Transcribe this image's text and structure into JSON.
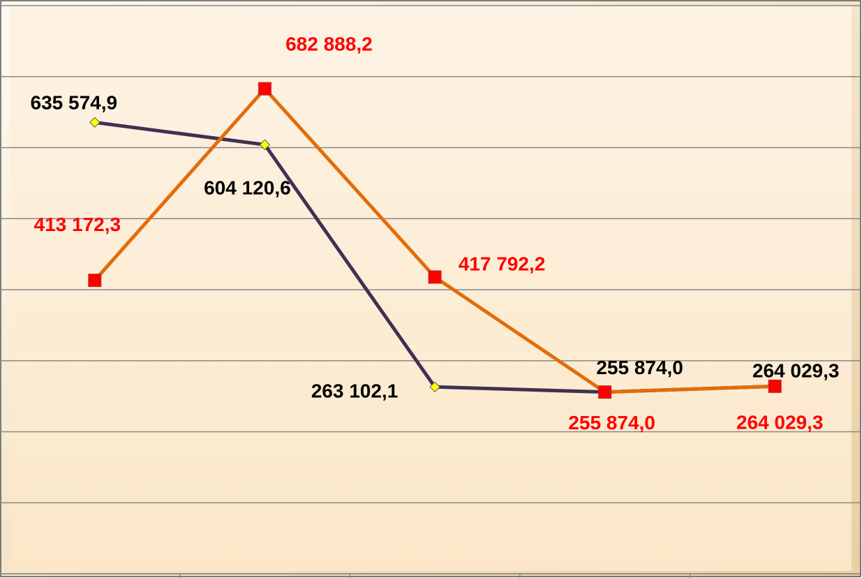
{
  "chart_data": {
    "type": "line",
    "categories": [
      null,
      null,
      null,
      null,
      null
    ],
    "series": [
      {
        "color": "#3f3151",
        "marker_color": "#ffff00",
        "label_color": "#000000",
        "values": [
          635574.9,
          604120.6,
          263102.1,
          255874.0,
          264029.3
        ],
        "value_labels": [
          "635 574,9",
          "604 120,6",
          "263 102,1",
          "255 874,0",
          "264 029,3"
        ]
      },
      {
        "color": "#e36c09",
        "marker_color": "#ff0000",
        "label_color": "#ff0000",
        "values": [
          413172.3,
          682888.2,
          417792.2,
          255874.0,
          264029.3
        ],
        "value_labels": [
          "413 172,3",
          "682 888,2",
          "417 792,2",
          "255 874,0",
          "264 029,3"
        ]
      }
    ],
    "ylim": [
      0,
      800000
    ],
    "yticks": [
      0,
      100000,
      200000,
      300000,
      400000,
      500000,
      600000,
      700000,
      800000
    ],
    "grid": true
  }
}
